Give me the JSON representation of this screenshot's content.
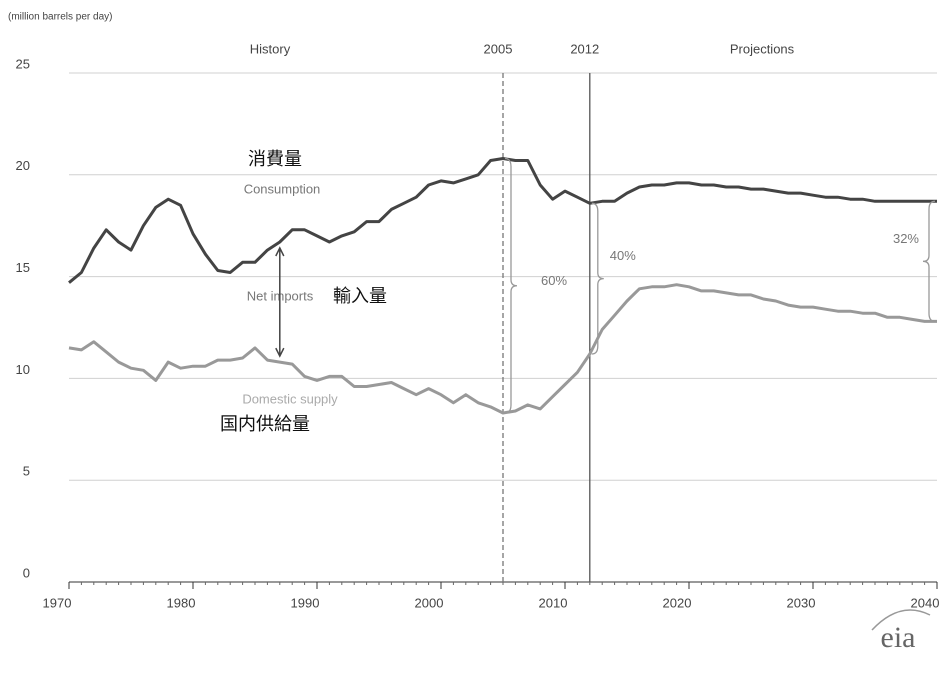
{
  "chart_data": {
    "type": "line",
    "units": "(million barrels per day)",
    "regions": {
      "history": "History",
      "projections": "Projections"
    },
    "markers": [
      {
        "x": 2005,
        "label": "2005",
        "style": "dashed"
      },
      {
        "x": 2012,
        "label": "2012",
        "style": "solid"
      }
    ],
    "x": [
      1970,
      1971,
      1972,
      1973,
      1974,
      1975,
      1976,
      1977,
      1978,
      1979,
      1980,
      1981,
      1982,
      1983,
      1984,
      1985,
      1986,
      1987,
      1988,
      1989,
      1990,
      1991,
      1992,
      1993,
      1994,
      1995,
      1996,
      1997,
      1998,
      1999,
      2000,
      2001,
      2002,
      2003,
      2004,
      2005,
      2006,
      2007,
      2008,
      2009,
      2010,
      2011,
      2012,
      2013,
      2014,
      2015,
      2016,
      2017,
      2018,
      2019,
      2020,
      2021,
      2022,
      2023,
      2024,
      2025,
      2026,
      2027,
      2028,
      2029,
      2030,
      2031,
      2032,
      2033,
      2034,
      2035,
      2036,
      2037,
      2038,
      2039,
      2040
    ],
    "series": [
      {
        "name": "Consumption",
        "name_ja": "消費量",
        "color": "#444444",
        "values": [
          14.7,
          15.2,
          16.4,
          17.3,
          16.7,
          16.3,
          17.5,
          18.4,
          18.8,
          18.5,
          17.1,
          16.1,
          15.3,
          15.2,
          15.7,
          15.7,
          16.3,
          16.7,
          17.3,
          17.3,
          17.0,
          16.7,
          17.0,
          17.2,
          17.7,
          17.7,
          18.3,
          18.6,
          18.9,
          19.5,
          19.7,
          19.6,
          19.8,
          20.0,
          20.7,
          20.8,
          20.7,
          20.7,
          19.5,
          18.8,
          19.2,
          18.9,
          18.6,
          18.7,
          18.7,
          19.1,
          19.4,
          19.5,
          19.5,
          19.6,
          19.6,
          19.5,
          19.5,
          19.4,
          19.4,
          19.3,
          19.3,
          19.2,
          19.1,
          19.1,
          19.0,
          18.9,
          18.9,
          18.8,
          18.8,
          18.7,
          18.7,
          18.7,
          18.7,
          18.7,
          18.7
        ]
      },
      {
        "name": "Domestic supply",
        "name_ja": "国内供給量",
        "color": "#999999",
        "values": [
          11.5,
          11.4,
          11.8,
          11.3,
          10.8,
          10.5,
          10.4,
          9.9,
          10.8,
          10.5,
          10.6,
          10.6,
          10.9,
          10.9,
          11.0,
          11.5,
          10.9,
          10.8,
          10.7,
          10.1,
          9.9,
          10.1,
          10.1,
          9.6,
          9.6,
          9.7,
          9.8,
          9.5,
          9.2,
          9.5,
          9.2,
          8.8,
          9.2,
          8.8,
          8.6,
          8.3,
          8.4,
          8.7,
          8.5,
          9.1,
          9.7,
          10.3,
          11.2,
          12.4,
          13.1,
          13.8,
          14.4,
          14.5,
          14.5,
          14.6,
          14.5,
          14.3,
          14.3,
          14.2,
          14.1,
          14.1,
          13.9,
          13.8,
          13.6,
          13.5,
          13.5,
          13.4,
          13.3,
          13.3,
          13.2,
          13.2,
          13.0,
          13.0,
          12.9,
          12.8,
          12.8
        ]
      }
    ],
    "net_imports": {
      "label": "Net imports",
      "label_ja": "輸入量",
      "x": 1987
    },
    "shares": [
      {
        "x": 2005,
        "label": "60%"
      },
      {
        "x": 2012,
        "label": "40%"
      },
      {
        "x": 2040,
        "label": "32%"
      }
    ],
    "xlim": [
      1970,
      2040
    ],
    "xticks": [
      1970,
      1980,
      1990,
      2000,
      2010,
      2020,
      2030,
      2040
    ],
    "ylim": [
      0,
      25
    ],
    "yticks": [
      0,
      5,
      10,
      15,
      20,
      25
    ],
    "grid": true,
    "logo": "eia"
  }
}
